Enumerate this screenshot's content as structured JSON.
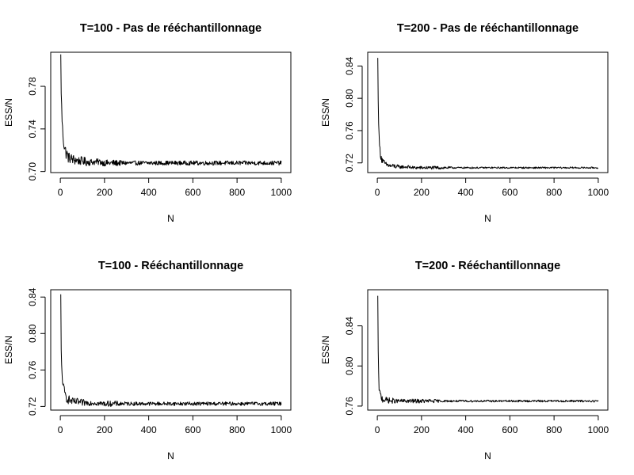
{
  "chart_data": [
    {
      "type": "line",
      "title": "T=100 - Pas de rééchantillonnage",
      "xlabel": "N",
      "ylabel": "ESS/N",
      "xlim": [
        0,
        1000
      ],
      "ylim": [
        0.699,
        0.812
      ],
      "xticks": [
        0,
        200,
        400,
        600,
        800,
        1000
      ],
      "yticks": [
        0.7,
        0.74,
        0.78
      ],
      "ytick_labels": [
        "0.70",
        "0.74",
        "0.78"
      ],
      "grid": false,
      "series": [
        {
          "x": [
            2,
            3,
            4,
            5,
            6,
            7,
            8,
            10,
            12,
            14,
            16,
            18,
            20,
            25,
            30,
            35,
            40,
            50,
            60,
            70,
            80,
            90,
            100,
            120,
            140,
            160,
            180,
            200,
            250,
            300,
            350,
            400,
            450,
            500,
            600,
            700,
            800,
            900,
            1000
          ],
          "y": [
            0.81,
            0.79,
            0.775,
            0.77,
            0.762,
            0.755,
            0.748,
            0.74,
            0.735,
            0.73,
            0.727,
            0.724,
            0.722,
            0.718,
            0.716,
            0.714,
            0.713,
            0.712,
            0.711,
            0.711,
            0.71,
            0.71,
            0.71,
            0.709,
            0.709,
            0.709,
            0.709,
            0.708,
            0.708,
            0.708,
            0.708,
            0.708,
            0.708,
            0.708,
            0.708,
            0.708,
            0.708,
            0.708,
            0.708
          ],
          "noise_amplitude": [
            0.0,
            0.0,
            0.003,
            0.003,
            0.003,
            0.003,
            0.004,
            0.005,
            0.005,
            0.006,
            0.006,
            0.006,
            0.006,
            0.006,
            0.006,
            0.006,
            0.005,
            0.005,
            0.005,
            0.005,
            0.004,
            0.004,
            0.004,
            0.004,
            0.003,
            0.003,
            0.003,
            0.003,
            0.003,
            0.002,
            0.002,
            0.002,
            0.002,
            0.002,
            0.002,
            0.002,
            0.002,
            0.002,
            0.002
          ],
          "color": "#000000"
        }
      ]
    },
    {
      "type": "line",
      "title": "T=200 - Pas de rééchantillonnage",
      "xlabel": "N",
      "ylabel": "ESS/N",
      "xlim": [
        0,
        1000
      ],
      "ylim": [
        0.708,
        0.857
      ],
      "xticks": [
        0,
        200,
        400,
        600,
        800,
        1000
      ],
      "yticks": [
        0.72,
        0.76,
        0.8,
        0.84
      ],
      "ytick_labels": [
        "0.72",
        "0.76",
        "0.80",
        "0.84"
      ],
      "grid": false,
      "series": [
        {
          "x": [
            2,
            3,
            4,
            5,
            6,
            7,
            8,
            10,
            12,
            14,
            16,
            18,
            20,
            25,
            30,
            35,
            40,
            50,
            60,
            70,
            80,
            90,
            100,
            120,
            140,
            160,
            180,
            200,
            250,
            300,
            350,
            400,
            450,
            500,
            600,
            700,
            800,
            900,
            1000
          ],
          "y": [
            0.85,
            0.83,
            0.8,
            0.785,
            0.77,
            0.76,
            0.752,
            0.742,
            0.736,
            0.732,
            0.729,
            0.727,
            0.725,
            0.722,
            0.72,
            0.719,
            0.718,
            0.717,
            0.716,
            0.716,
            0.716,
            0.715,
            0.715,
            0.715,
            0.715,
            0.714,
            0.714,
            0.714,
            0.714,
            0.714,
            0.714,
            0.714,
            0.714,
            0.714,
            0.714,
            0.714,
            0.714,
            0.714,
            0.714
          ],
          "noise_amplitude": [
            0.0,
            0.0,
            0.003,
            0.003,
            0.003,
            0.003,
            0.004,
            0.005,
            0.005,
            0.005,
            0.005,
            0.005,
            0.005,
            0.004,
            0.004,
            0.004,
            0.003,
            0.003,
            0.003,
            0.003,
            0.003,
            0.003,
            0.002,
            0.002,
            0.002,
            0.002,
            0.002,
            0.002,
            0.002,
            0.002,
            0.001,
            0.001,
            0.001,
            0.001,
            0.001,
            0.001,
            0.001,
            0.001,
            0.001
          ],
          "color": "#000000"
        }
      ]
    },
    {
      "type": "line",
      "title": "T=100 - Rééchantillonnage",
      "xlabel": "N",
      "ylabel": "ESS/N",
      "xlim": [
        0,
        1000
      ],
      "ylim": [
        0.716,
        0.848
      ],
      "xticks": [
        0,
        200,
        400,
        600,
        800,
        1000
      ],
      "yticks": [
        0.72,
        0.76,
        0.8,
        0.84
      ],
      "ytick_labels": [
        "0.72",
        "0.76",
        "0.80",
        "0.84"
      ],
      "grid": false,
      "series": [
        {
          "x": [
            2,
            3,
            4,
            5,
            6,
            7,
            8,
            10,
            12,
            14,
            16,
            18,
            20,
            25,
            30,
            35,
            40,
            50,
            60,
            70,
            80,
            90,
            100,
            120,
            140,
            160,
            180,
            200,
            250,
            300,
            350,
            400,
            450,
            500,
            600,
            700,
            800,
            900,
            1000
          ],
          "y": [
            0.843,
            0.8,
            0.78,
            0.77,
            0.765,
            0.76,
            0.755,
            0.75,
            0.745,
            0.741,
            0.738,
            0.736,
            0.734,
            0.731,
            0.729,
            0.728,
            0.727,
            0.726,
            0.725,
            0.725,
            0.725,
            0.724,
            0.724,
            0.724,
            0.724,
            0.724,
            0.723,
            0.723,
            0.723,
            0.723,
            0.723,
            0.723,
            0.723,
            0.723,
            0.723,
            0.723,
            0.723,
            0.723,
            0.723
          ],
          "noise_amplitude": [
            0.0,
            0.0,
            0.004,
            0.004,
            0.004,
            0.004,
            0.005,
            0.005,
            0.005,
            0.005,
            0.006,
            0.006,
            0.006,
            0.006,
            0.005,
            0.005,
            0.005,
            0.004,
            0.004,
            0.004,
            0.004,
            0.004,
            0.004,
            0.003,
            0.003,
            0.003,
            0.003,
            0.003,
            0.003,
            0.002,
            0.002,
            0.002,
            0.002,
            0.002,
            0.002,
            0.002,
            0.002,
            0.002,
            0.002
          ],
          "color": "#000000"
        }
      ]
    },
    {
      "type": "line",
      "title": "T=200 - Rééchantillonnage",
      "xlabel": "N",
      "ylabel": "ESS/N",
      "xlim": [
        0,
        1000
      ],
      "ylim": [
        0.756,
        0.876
      ],
      "xticks": [
        0,
        200,
        400,
        600,
        800,
        1000
      ],
      "yticks": [
        0.76,
        0.8,
        0.84
      ],
      "ytick_labels": [
        "0.76",
        "0.80",
        "0.84"
      ],
      "grid": false,
      "series": [
        {
          "x": [
            2,
            3,
            4,
            5,
            6,
            7,
            8,
            10,
            12,
            14,
            16,
            18,
            20,
            25,
            30,
            35,
            40,
            50,
            60,
            70,
            80,
            90,
            100,
            120,
            140,
            160,
            180,
            200,
            250,
            300,
            350,
            400,
            450,
            500,
            600,
            700,
            800,
            900,
            1000
          ],
          "y": [
            0.87,
            0.84,
            0.815,
            0.8,
            0.79,
            0.783,
            0.778,
            0.774,
            0.772,
            0.771,
            0.77,
            0.769,
            0.768,
            0.767,
            0.767,
            0.766,
            0.766,
            0.766,
            0.765,
            0.765,
            0.765,
            0.765,
            0.765,
            0.765,
            0.765,
            0.765,
            0.765,
            0.765,
            0.765,
            0.765,
            0.765,
            0.765,
            0.765,
            0.765,
            0.765,
            0.765,
            0.765,
            0.765,
            0.765
          ],
          "noise_amplitude": [
            0.0,
            0.0,
            0.003,
            0.003,
            0.003,
            0.003,
            0.003,
            0.004,
            0.004,
            0.004,
            0.004,
            0.004,
            0.004,
            0.004,
            0.004,
            0.003,
            0.003,
            0.003,
            0.003,
            0.003,
            0.002,
            0.002,
            0.002,
            0.002,
            0.002,
            0.002,
            0.002,
            0.002,
            0.002,
            0.001,
            0.001,
            0.001,
            0.001,
            0.001,
            0.001,
            0.001,
            0.001,
            0.001,
            0.001
          ],
          "color": "#000000"
        }
      ]
    }
  ]
}
